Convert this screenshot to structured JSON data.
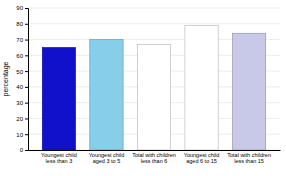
{
  "chart_data": {
    "type": "bar",
    "categories": [
      "Youngest child\nless than 3",
      "Youngest child\naged 3 to 5",
      "Total with children\nless than 6",
      "Youngest child\naged 6 to 15",
      "Total with children\nless than 15"
    ],
    "values": [
      65,
      70,
      67,
      79,
      74
    ],
    "colors": [
      "#1111cc",
      "#87ceeb",
      "#ffffff",
      "#ffffff",
      "#c8c8e8"
    ],
    "ylabel": "percentage",
    "ylim": [
      0,
      90
    ],
    "yticks": [
      0,
      10,
      20,
      30,
      40,
      50,
      60,
      70,
      80,
      90
    ],
    "grid": true
  }
}
